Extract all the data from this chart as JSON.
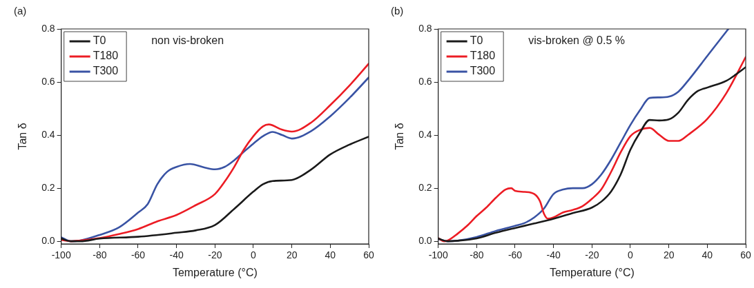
{
  "chart_data": [
    {
      "type": "line",
      "title": "(a)",
      "xlabel": "Temperature (°C)",
      "ylabel": "Tan δ",
      "annotations": [
        "non vis-broken"
      ],
      "legend": "top left",
      "grid": false,
      "marker": "none",
      "line_style": "solid",
      "xlim": [
        -100,
        60
      ],
      "xticks": [
        -100,
        -80,
        -60,
        -40,
        -20,
        0,
        20,
        40,
        60
      ],
      "ylim": [
        -0.01,
        0.8
      ],
      "yticks": [
        {
          "value": 0,
          "label": "0.0"
        },
        0.2,
        0.4,
        0.6,
        0.8
      ],
      "series": [
        {
          "name": "T0",
          "color": "#1a1a1a",
          "x": [
            -100,
            -95,
            -90,
            -80,
            -60,
            -40,
            -30,
            -20,
            -10,
            0,
            5,
            10,
            20,
            30,
            40,
            50,
            60
          ],
          "values": [
            0.01,
            0.0,
            0.0,
            0.01,
            0.017,
            0.032,
            0.041,
            0.061,
            0.122,
            0.187,
            0.215,
            0.227,
            0.231,
            0.27,
            0.327,
            0.364,
            0.394
          ]
        },
        {
          "name": "T180",
          "color": "#ec1c24",
          "x": [
            -100,
            -95,
            -90,
            -80,
            -70,
            -60,
            -50,
            -40,
            -30,
            -20,
            -15,
            -10,
            -5,
            0,
            5,
            8,
            15,
            20,
            30,
            40,
            50,
            60
          ],
          "values": [
            0.005,
            0.0,
            0.003,
            0.012,
            0.027,
            0.046,
            0.075,
            0.099,
            0.136,
            0.178,
            0.224,
            0.28,
            0.345,
            0.396,
            0.433,
            0.44,
            0.42,
            0.413,
            0.447,
            0.513,
            0.587,
            0.669
          ]
        },
        {
          "name": "T300",
          "color": "#3953a4",
          "x": [
            -100,
            -95,
            -90,
            -80,
            -70,
            -60,
            -55,
            -50,
            -45,
            -40,
            -33,
            -25,
            -20,
            -15,
            -10,
            -5,
            0,
            5,
            10,
            15,
            20,
            30,
            40,
            50,
            60
          ],
          "values": [
            0.015,
            0.0,
            0.003,
            0.024,
            0.052,
            0.108,
            0.14,
            0.215,
            0.261,
            0.28,
            0.291,
            0.277,
            0.271,
            0.28,
            0.305,
            0.337,
            0.368,
            0.396,
            0.412,
            0.4,
            0.387,
            0.415,
            0.471,
            0.54,
            0.617
          ]
        }
      ]
    },
    {
      "type": "line",
      "title": "(b)",
      "xlabel": "Temperature (°C)",
      "ylabel": "Tan δ",
      "annotations": [
        "vis-broken @ 0.5 %"
      ],
      "legend": "top left",
      "grid": false,
      "marker": "none",
      "line_style": "solid",
      "xlim": [
        -100,
        60
      ],
      "xticks": [
        -100,
        -80,
        -60,
        -40,
        -20,
        0,
        20,
        40,
        60
      ],
      "ylim": [
        -0.01,
        0.8
      ],
      "yticks": [
        {
          "value": 0,
          "label": "0.0"
        },
        0.2,
        0.4,
        0.6,
        0.8
      ],
      "series": [
        {
          "name": "T0",
          "color": "#1a1a1a",
          "x": [
            -100,
            -95,
            -90,
            -80,
            -70,
            -60,
            -50,
            -40,
            -30,
            -20,
            -15,
            -10,
            -5,
            0,
            5,
            10,
            15,
            20,
            25,
            30,
            35,
            40,
            50,
            55,
            60
          ],
          "values": [
            0.01,
            0.0,
            0.002,
            0.011,
            0.032,
            0.05,
            0.067,
            0.085,
            0.106,
            0.127,
            0.15,
            0.188,
            0.253,
            0.345,
            0.41,
            0.457,
            0.455,
            0.459,
            0.485,
            0.533,
            0.566,
            0.579,
            0.605,
            0.629,
            0.656
          ]
        },
        {
          "name": "T180",
          "color": "#ec1c24",
          "x": [
            -100,
            -97,
            -95,
            -90,
            -85,
            -80,
            -75,
            -70,
            -65,
            -62,
            -60,
            -55,
            -50,
            -47,
            -45,
            -43,
            -40,
            -35,
            -30,
            -25,
            -20,
            -15,
            -10,
            -5,
            0,
            5,
            10,
            15,
            20,
            25,
            30,
            40,
            50,
            60
          ],
          "values": [
            0.012,
            0.0,
            0.003,
            0.028,
            0.058,
            0.095,
            0.127,
            0.164,
            0.195,
            0.2,
            0.19,
            0.186,
            0.178,
            0.15,
            0.104,
            0.085,
            0.09,
            0.109,
            0.118,
            0.132,
            0.16,
            0.197,
            0.262,
            0.336,
            0.396,
            0.42,
            0.427,
            0.401,
            0.378,
            0.378,
            0.401,
            0.461,
            0.559,
            0.694
          ]
        },
        {
          "name": "T300",
          "color": "#3953a4",
          "x": [
            -100,
            -95,
            -90,
            -80,
            -70,
            -60,
            -55,
            -50,
            -45,
            -40,
            -35,
            -30,
            -25,
            -20,
            -15,
            -10,
            -5,
            0,
            5,
            10,
            15,
            20,
            25,
            30,
            40,
            50,
            51
          ],
          "values": [
            0.008,
            0.0,
            0.002,
            0.016,
            0.039,
            0.058,
            0.069,
            0.09,
            0.123,
            0.178,
            0.195,
            0.2,
            0.2,
            0.215,
            0.253,
            0.308,
            0.373,
            0.438,
            0.494,
            0.54,
            0.542,
            0.545,
            0.564,
            0.605,
            0.698,
            0.791,
            0.8
          ]
        }
      ]
    }
  ]
}
